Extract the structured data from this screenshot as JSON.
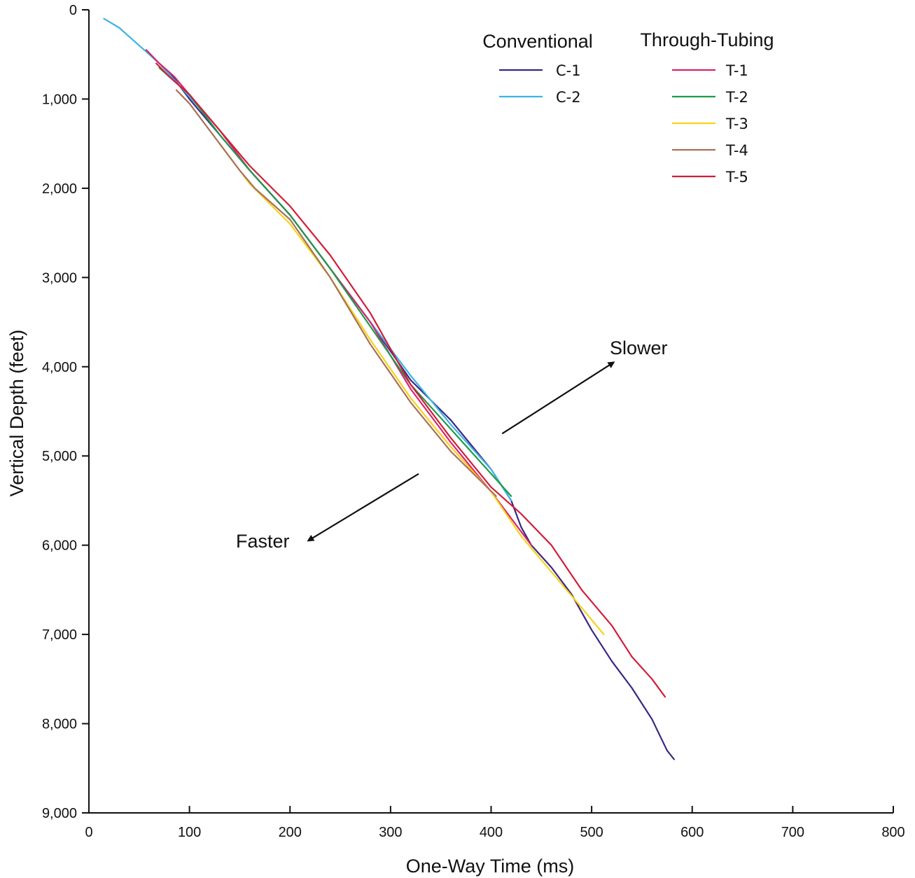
{
  "chart_data": {
    "type": "line",
    "xlabel": "One-Way Time (ms)",
    "ylabel": "Vertical Depth (feet)",
    "xlim": [
      0,
      800
    ],
    "ylim": [
      0,
      9000
    ],
    "y_inverted": true,
    "grid": false,
    "x_ticks": [
      {
        "value": 0,
        "label": "0"
      },
      {
        "value": 100,
        "label": "100"
      },
      {
        "value": 200,
        "label": "200"
      },
      {
        "value": 300,
        "label": "300"
      },
      {
        "value": 400,
        "label": "400"
      },
      {
        "value": 500,
        "label": "500"
      },
      {
        "value": 600,
        "label": "600"
      },
      {
        "value": 700,
        "label": "700"
      },
      {
        "value": 800,
        "label": "800"
      }
    ],
    "y_ticks": [
      {
        "value": 0,
        "label": "0"
      },
      {
        "value": 1000,
        "label": "1,000"
      },
      {
        "value": 2000,
        "label": "2,000"
      },
      {
        "value": 3000,
        "label": "3,000"
      },
      {
        "value": 4000,
        "label": "4,000"
      },
      {
        "value": 5000,
        "label": "5,000"
      },
      {
        "value": 6000,
        "label": "6,000"
      },
      {
        "value": 7000,
        "label": "7,000"
      },
      {
        "value": 8000,
        "label": "8,000"
      },
      {
        "value": 9000,
        "label": "9,000"
      }
    ],
    "legend": {
      "placement": "top-right",
      "groups": [
        {
          "title": "Conventional",
          "series": [
            "C-1",
            "C-2"
          ]
        },
        {
          "title": "Through-Tubing",
          "series": [
            "T-1",
            "T-2",
            "T-3",
            "T-4",
            "T-5"
          ]
        }
      ]
    },
    "series": [
      {
        "name": "C-1",
        "color": "#3b2583",
        "x": [
          80,
          100,
          130,
          160,
          200,
          240,
          280,
          320,
          360,
          400,
          420,
          430,
          440,
          460,
          480,
          500,
          520,
          540,
          560,
          575,
          582
        ],
        "y": [
          700,
          1000,
          1400,
          1800,
          2300,
          2900,
          3500,
          4150,
          4600,
          5150,
          5500,
          5800,
          6000,
          6250,
          6550,
          6950,
          7300,
          7600,
          7950,
          8300,
          8400
        ]
      },
      {
        "name": "C-2",
        "color": "#3ab4e6",
        "x": [
          15,
          30,
          40,
          55,
          70,
          90,
          110,
          130,
          160,
          200,
          240,
          280,
          320,
          360,
          400,
          420
        ],
        "y": [
          100,
          200,
          300,
          450,
          600,
          850,
          1100,
          1400,
          1800,
          2300,
          2900,
          3500,
          4100,
          4650,
          5150,
          5500
        ]
      },
      {
        "name": "T-1",
        "color": "#d6246e",
        "x": [
          57,
          70,
          85,
          100,
          130,
          160,
          200,
          240,
          280,
          320,
          360,
          400,
          420,
          440
        ],
        "y": [
          450,
          600,
          750,
          950,
          1350,
          1800,
          2300,
          2900,
          3500,
          4250,
          4850,
          5400,
          5700,
          6000
        ]
      },
      {
        "name": "T-2",
        "color": "#1f9a48",
        "x": [
          70,
          85,
          100,
          130,
          160,
          200,
          240,
          280,
          320,
          360,
          400,
          420
        ],
        "y": [
          650,
          800,
          950,
          1400,
          1800,
          2300,
          2900,
          3550,
          4200,
          4700,
          5200,
          5450
        ]
      },
      {
        "name": "T-3",
        "color": "#f7d21a",
        "x": [
          130,
          160,
          200,
          240,
          280,
          320,
          360,
          400,
          430,
          460,
          490,
          512
        ],
        "y": [
          1500,
          1950,
          2400,
          3000,
          3700,
          4350,
          4900,
          5400,
          5900,
          6300,
          6700,
          7000
        ]
      },
      {
        "name": "T-4",
        "color": "#a8715a",
        "x": [
          87,
          100,
          130,
          150,
          165,
          200,
          240,
          280,
          320,
          360,
          405
        ],
        "y": [
          900,
          1050,
          1500,
          1800,
          2000,
          2350,
          3000,
          3750,
          4400,
          4950,
          5450
        ]
      },
      {
        "name": "T-5",
        "color": "#d11e3a",
        "x": [
          67,
          80,
          100,
          130,
          160,
          200,
          240,
          280,
          320,
          360,
          400,
          430,
          460,
          490,
          520,
          540,
          560,
          573
        ],
        "y": [
          600,
          750,
          950,
          1350,
          1750,
          2200,
          2750,
          3400,
          4200,
          4800,
          5350,
          5650,
          6000,
          6500,
          6900,
          7250,
          7500,
          7700
        ]
      }
    ],
    "annotations": [
      {
        "text": "Slower",
        "from": [
          411,
          4750
        ],
        "to": [
          522,
          3950
        ]
      },
      {
        "text": "Faster",
        "from": [
          328,
          5200
        ],
        "to": [
          218,
          5950
        ]
      }
    ]
  }
}
